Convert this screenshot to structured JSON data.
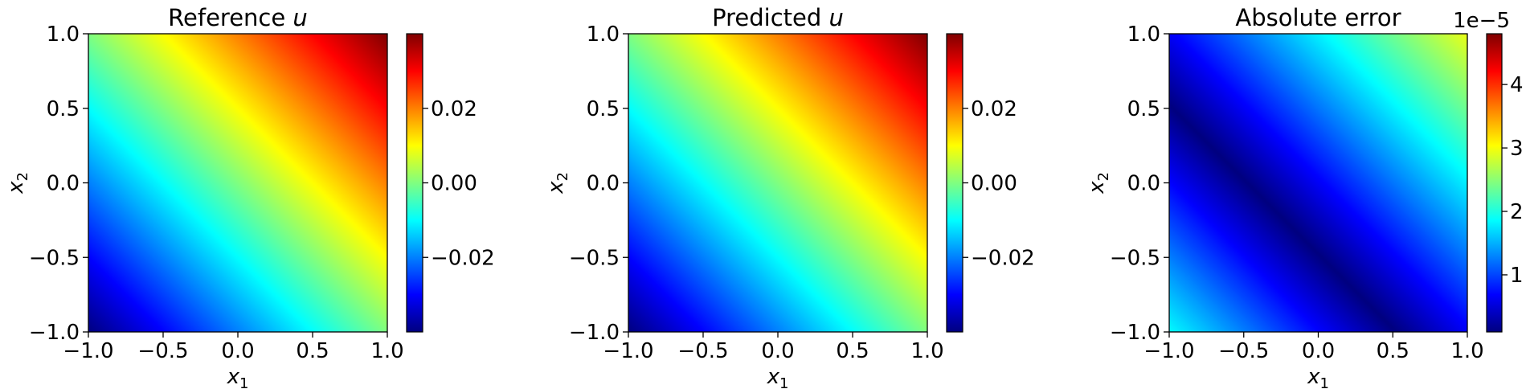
{
  "chart_data": [
    {
      "type": "heatmap",
      "title": "Reference",
      "title_var": "u",
      "xlabel_var": "x",
      "xlabel_sub": "1",
      "ylabel_var": "x",
      "ylabel_sub": "2",
      "xlim": [
        -1.0,
        1.0
      ],
      "ylim": [
        -1.0,
        1.0
      ],
      "xticks": [
        -1.0,
        -0.5,
        0.0,
        0.5,
        1.0
      ],
      "xtick_labels": [
        "−1.0",
        "−0.5",
        "0.0",
        "0.5",
        "1.0"
      ],
      "yticks": [
        -1.0,
        -0.5,
        0.0,
        0.5,
        1.0
      ],
      "ytick_labels": [
        "−1.0",
        "−0.5",
        "0.0",
        "0.5",
        "1.0"
      ],
      "colormap": "jet",
      "field": "linear",
      "field_coeffs": {
        "a": 0.02,
        "b": 0.02,
        "c": 0.0
      },
      "vmin": -0.04,
      "vmax": 0.04,
      "colorbar_ticks": [
        -0.02,
        0.0,
        0.02
      ],
      "colorbar_tick_labels": [
        "−0.02",
        "0.00",
        "0.02"
      ],
      "colorbar_offset": "",
      "grid": false
    },
    {
      "type": "heatmap",
      "title": "Predicted",
      "title_var": "u",
      "xlabel_var": "x",
      "xlabel_sub": "1",
      "ylabel_var": "x",
      "ylabel_sub": "2",
      "xlim": [
        -1.0,
        1.0
      ],
      "ylim": [
        -1.0,
        1.0
      ],
      "xticks": [
        -1.0,
        -0.5,
        0.0,
        0.5,
        1.0
      ],
      "xtick_labels": [
        "−1.0",
        "−0.5",
        "0.0",
        "0.5",
        "1.0"
      ],
      "yticks": [
        -1.0,
        -0.5,
        0.0,
        0.5,
        1.0
      ],
      "ytick_labels": [
        "−1.0",
        "−0.5",
        "0.0",
        "0.5",
        "1.0"
      ],
      "colormap": "jet",
      "field": "linear",
      "field_coeffs": {
        "a": 0.02,
        "b": 0.02,
        "c": 0.0
      },
      "vmin": -0.04,
      "vmax": 0.04,
      "colorbar_ticks": [
        -0.02,
        0.0,
        0.02
      ],
      "colorbar_tick_labels": [
        "−0.02",
        "0.00",
        "0.02"
      ],
      "colorbar_offset": "",
      "grid": false
    },
    {
      "type": "heatmap",
      "title": "Absolute error",
      "title_var": "",
      "xlabel_var": "x",
      "xlabel_sub": "1",
      "ylabel_var": "x",
      "ylabel_sub": "2",
      "xlim": [
        -1.0,
        1.0
      ],
      "ylim": [
        -1.0,
        1.0
      ],
      "xticks": [
        -1.0,
        -0.5,
        0.0,
        0.5,
        1.0
      ],
      "xtick_labels": [
        "−1.0",
        "−0.5",
        "0.0",
        "0.5",
        "1.0"
      ],
      "yticks": [
        -1.0,
        -0.5,
        0.0,
        0.5,
        1.0
      ],
      "ytick_labels": [
        "−1.0",
        "−0.5",
        "0.0",
        "0.5",
        "1.0"
      ],
      "colormap": "jet",
      "field": "abs_linear",
      "field_coeffs": {
        "a": 1.15,
        "b": 1.15,
        "c": 0.55
      },
      "field_floor": 0.1,
      "vmin": 0.1,
      "vmax": 4.8,
      "colorbar_ticks": [
        1,
        2,
        3,
        4
      ],
      "colorbar_tick_labels": [
        "1",
        "2",
        "3",
        "4"
      ],
      "colorbar_offset": "1e−5",
      "grid": false
    }
  ]
}
